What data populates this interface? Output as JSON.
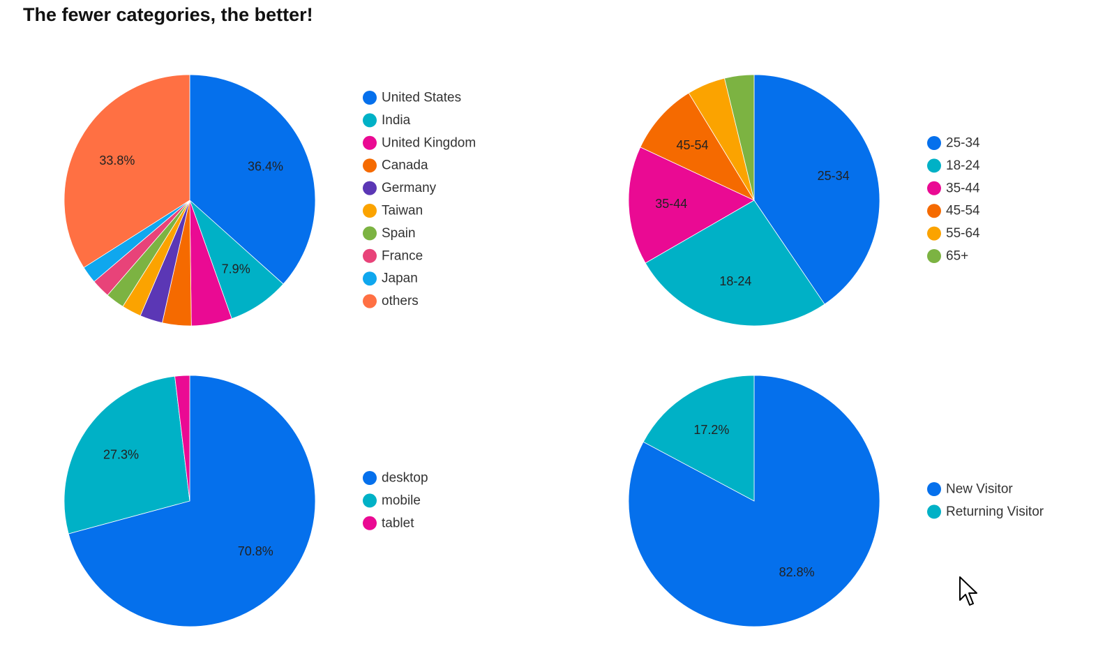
{
  "title": "The fewer categories, the better!",
  "chart_data": [
    {
      "type": "pie",
      "title": "",
      "legend": "right",
      "labels": [
        "United States",
        "India",
        "United Kingdom",
        "Canada",
        "Germany",
        "Taiwan",
        "Spain",
        "France",
        "Japan",
        "others"
      ],
      "values": [
        36.4,
        7.9,
        5.2,
        3.7,
        2.9,
        2.5,
        2.4,
        2.4,
        2.2,
        33.8
      ],
      "colors": [
        "#0570ec",
        "#00b1c6",
        "#ea0a93",
        "#f56a00",
        "#5b37b5",
        "#fba300",
        "#7cb342",
        "#e84379",
        "#0fa7ee",
        "#ff7043"
      ],
      "data_labels": [
        "36.4%",
        "7.9%",
        "",
        "",
        "",
        "",
        "",
        "",
        "",
        "33.8%"
      ]
    },
    {
      "type": "pie",
      "title": "",
      "legend": "right",
      "labels": [
        "25-34",
        "18-24",
        "35-44",
        "45-54",
        "55-64",
        "65+"
      ],
      "values": [
        39.5,
        25.5,
        14.9,
        9.1,
        4.8,
        3.7
      ],
      "colors": [
        "#0570ec",
        "#00b1c6",
        "#ea0a93",
        "#f56a00",
        "#fba300",
        "#7cb342"
      ],
      "data_labels": [
        "25-34",
        "18-24",
        "35-44",
        "45-54",
        "",
        ""
      ]
    },
    {
      "type": "pie",
      "title": "",
      "legend": "right",
      "labels": [
        "desktop",
        "mobile",
        "tablet"
      ],
      "values": [
        70.8,
        27.3,
        1.9
      ],
      "colors": [
        "#0570ec",
        "#00b1c6",
        "#ea0a93"
      ],
      "data_labels": [
        "70.8%",
        "27.3%",
        ""
      ]
    },
    {
      "type": "pie",
      "title": "",
      "legend": "right",
      "labels": [
        "New Visitor",
        "Returning Visitor"
      ],
      "values": [
        82.8,
        17.2
      ],
      "colors": [
        "#0570ec",
        "#00b1c6"
      ],
      "data_labels": [
        "82.8%",
        "17.2%"
      ]
    }
  ]
}
